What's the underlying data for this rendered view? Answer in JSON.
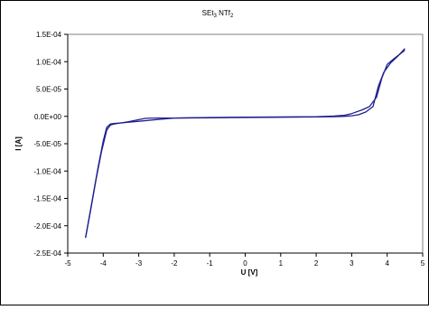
{
  "chart_data": {
    "type": "line",
    "title": {
      "main": "SEt",
      "sub1": "3",
      "middle": " NTf",
      "sub2": "2"
    },
    "xlabel": "U [V]",
    "ylabel": "I [A]",
    "xlim": [
      -5,
      5
    ],
    "ylim": [
      -0.00025,
      0.00015
    ],
    "x_ticks": [
      -5,
      -4,
      -3,
      -2,
      -1,
      0,
      1,
      2,
      3,
      4,
      5
    ],
    "x_tick_labels": [
      "-5",
      "-4",
      "-3",
      "-2",
      "-1",
      "0",
      "1",
      "2",
      "3",
      "4",
      "5"
    ],
    "y_ticks": [
      0.00015,
      0.0001,
      5e-05,
      0,
      -5e-05,
      -0.0001,
      -0.00015,
      -0.0002,
      -0.00025
    ],
    "y_tick_labels": [
      "1.5E-04",
      "1.0E-04",
      "5.0E-05",
      "0.0E+00",
      "-5.0E-05",
      "-1.0E-04",
      "-1.5E-04",
      "-2.0E-04",
      "-2.5E-04"
    ],
    "grid": false,
    "legend": "none",
    "series_color": "#1f1f8f",
    "series": [
      {
        "x": [
          -4.5,
          -4.35,
          -4.2,
          -4.05,
          -3.9,
          -3.8,
          -3.7,
          -3.5,
          -3.0,
          -2.5,
          -2.0,
          -1.5,
          -1.0,
          0,
          1.0,
          2.0,
          2.5,
          2.8,
          3.0,
          3.3,
          3.5,
          3.7,
          3.85,
          4.0,
          4.2,
          4.4,
          4.5
        ],
        "y": [
          -0.000222,
          -0.00017,
          -0.000115,
          -6.5e-05,
          -2.5e-05,
          -1.6e-05,
          -1.4e-05,
          -1.2e-05,
          -9e-06,
          -6e-06,
          -3e-06,
          -2.5e-06,
          -2e-06,
          -1.5e-06,
          -1e-06,
          -5e-07,
          5e-07,
          2e-06,
          5e-06,
          1.2e-05,
          1.8e-05,
          3.5e-05,
          7e-05,
          9.5e-05,
          0.000106,
          0.000116,
          0.000121
        ]
      },
      {
        "x": [
          4.5,
          4.3,
          4.1,
          3.9,
          3.75,
          3.6,
          3.4,
          3.2,
          3.0,
          2.8,
          2.5,
          2.0,
          1.0,
          0,
          -1.0,
          -2.0,
          -2.5,
          -2.8,
          -3.0,
          -3.3,
          -3.5,
          -3.7,
          -3.8,
          -3.9,
          -4.0,
          -4.15,
          -4.3,
          -4.45,
          -4.5
        ],
        "y": [
          0.000124,
          0.00011,
          9.8e-05,
          8e-05,
          5.5e-05,
          1.8e-05,
          8e-06,
          3e-06,
          1e-06,
          0.0,
          -5e-07,
          -1e-06,
          -1.5e-06,
          -2e-06,
          -2.5e-06,
          -3e-06,
          -3e-06,
          -3.5e-06,
          -6e-06,
          -1e-05,
          -1.2e-05,
          -1.3e-05,
          -1.4e-05,
          -2e-05,
          -4.5e-05,
          -9.5e-05,
          -0.00015,
          -0.000205,
          -0.000222
        ]
      }
    ]
  }
}
